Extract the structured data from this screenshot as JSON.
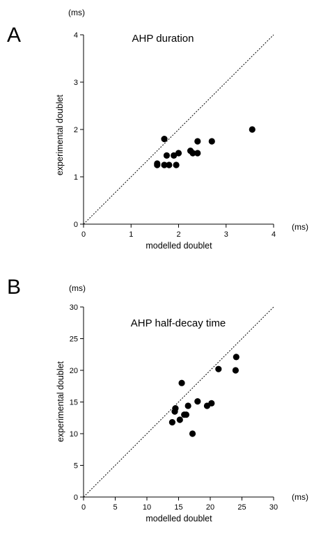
{
  "chart_data": [
    {
      "type": "scatter",
      "panel": "A",
      "title": "AHP duration",
      "xlabel": "modelled doublet",
      "ylabel": "experimental doublet",
      "x_unit": "(ms)",
      "y_unit": "(ms)",
      "xlim": [
        0,
        4
      ],
      "ylim": [
        0,
        4
      ],
      "xticks": [
        "0",
        "1",
        "2",
        "3",
        "4"
      ],
      "yticks": [
        "0",
        "1",
        "2",
        "3",
        "4"
      ],
      "identity_line": true,
      "grid": false,
      "points": [
        {
          "x": 1.55,
          "y": 1.25
        },
        {
          "x": 1.55,
          "y": 1.28
        },
        {
          "x": 1.7,
          "y": 1.8
        },
        {
          "x": 1.7,
          "y": 1.25
        },
        {
          "x": 1.75,
          "y": 1.45
        },
        {
          "x": 1.8,
          "y": 1.25
        },
        {
          "x": 1.9,
          "y": 1.45
        },
        {
          "x": 1.95,
          "y": 1.25
        },
        {
          "x": 2.0,
          "y": 1.5
        },
        {
          "x": 2.25,
          "y": 1.55
        },
        {
          "x": 2.3,
          "y": 1.5
        },
        {
          "x": 2.4,
          "y": 1.75
        },
        {
          "x": 2.4,
          "y": 1.5
        },
        {
          "x": 2.7,
          "y": 1.75
        },
        {
          "x": 3.55,
          "y": 2.0
        }
      ]
    },
    {
      "type": "scatter",
      "panel": "B",
      "title": "AHP half-decay time",
      "xlabel": "modelled doublet",
      "ylabel": "experimental doublet",
      "x_unit": "(ms)",
      "y_unit": "(ms)",
      "xlim": [
        0,
        30
      ],
      "ylim": [
        0,
        30
      ],
      "xticks": [
        "0",
        "5",
        "10",
        "15",
        "20",
        "25",
        "30"
      ],
      "yticks": [
        "0",
        "5",
        "10",
        "15",
        "20",
        "25",
        "30"
      ],
      "identity_line": true,
      "grid": false,
      "points": [
        {
          "x": 14.0,
          "y": 11.8
        },
        {
          "x": 14.4,
          "y": 13.5
        },
        {
          "x": 14.5,
          "y": 14.0
        },
        {
          "x": 15.2,
          "y": 12.2
        },
        {
          "x": 15.5,
          "y": 18.0
        },
        {
          "x": 15.9,
          "y": 13.0
        },
        {
          "x": 16.2,
          "y": 13.0
        },
        {
          "x": 16.5,
          "y": 14.4
        },
        {
          "x": 17.2,
          "y": 10.0
        },
        {
          "x": 18.0,
          "y": 15.1
        },
        {
          "x": 19.5,
          "y": 14.4
        },
        {
          "x": 20.2,
          "y": 14.8
        },
        {
          "x": 21.3,
          "y": 20.2
        },
        {
          "x": 24.0,
          "y": 20.0
        },
        {
          "x": 24.1,
          "y": 22.1
        }
      ]
    }
  ]
}
